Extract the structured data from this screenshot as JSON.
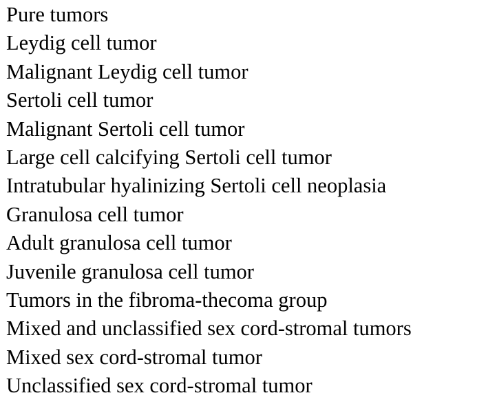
{
  "document": {
    "lines": [
      "Pure tumors",
      "Leydig cell tumor",
      "Malignant Leydig cell tumor",
      "Sertoli cell tumor",
      "Malignant Sertoli cell tumor",
      "Large cell calcifying Sertoli cell tumor",
      "Intratubular hyalinizing Sertoli cell neoplasia",
      "Granulosa cell tumor",
      "Adult granulosa cell tumor",
      "Juvenile granulosa cell tumor",
      "Tumors in the fibroma-thecoma group",
      "Mixed and unclassified sex cord-stromal tumors",
      "Mixed sex cord-stromal tumor",
      "Unclassified sex cord-stromal tumor"
    ]
  }
}
